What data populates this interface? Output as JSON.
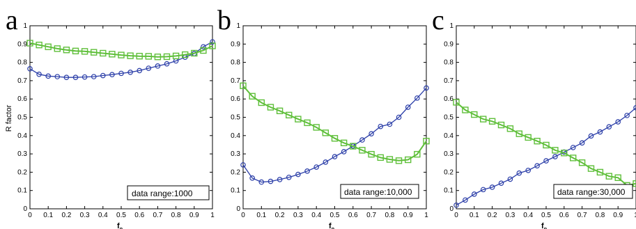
{
  "colors": {
    "blue_series": "#2b3ea8",
    "green_series": "#5fbf3a",
    "axis": "#000000",
    "legend_box_border": "#000000"
  },
  "chart_data": [
    {
      "type": "line",
      "panel_label": "a",
      "xlabel": "f_p",
      "ylabel": "R factor",
      "xlim": [
        0,
        1
      ],
      "ylim": [
        0,
        1
      ],
      "xticks": [
        "0",
        "0.1",
        "0.2",
        "0.3",
        "0.4",
        "0.5",
        "0.6",
        "0.7",
        "0.8",
        "0.9",
        "1"
      ],
      "yticks": [
        "0",
        "0.1",
        "0.2",
        "0.3",
        "0.4",
        "0.5",
        "0.6",
        "0.7",
        "0.8",
        "0.9",
        "1"
      ],
      "grid": false,
      "annotation": "data range:1000",
      "x": [
        0,
        0.05,
        0.1,
        0.15,
        0.2,
        0.25,
        0.3,
        0.35,
        0.4,
        0.45,
        0.5,
        0.55,
        0.6,
        0.65,
        0.7,
        0.75,
        0.8,
        0.85,
        0.9,
        0.95,
        1.0
      ],
      "series": [
        {
          "marker": "circle",
          "color_key": "blue_series",
          "values": [
            0.765,
            0.735,
            0.725,
            0.722,
            0.718,
            0.718,
            0.72,
            0.722,
            0.728,
            0.733,
            0.74,
            0.746,
            0.755,
            0.768,
            0.78,
            0.792,
            0.808,
            0.828,
            0.848,
            0.885,
            0.912
          ]
        },
        {
          "marker": "square",
          "color_key": "green_series",
          "values": [
            0.905,
            0.895,
            0.885,
            0.875,
            0.868,
            0.862,
            0.86,
            0.855,
            0.85,
            0.845,
            0.84,
            0.836,
            0.834,
            0.833,
            0.83,
            0.831,
            0.835,
            0.842,
            0.85,
            0.865,
            0.89
          ]
        }
      ]
    },
    {
      "type": "line",
      "panel_label": "b",
      "xlabel": "f_p",
      "ylabel": "",
      "xlim": [
        0,
        1
      ],
      "ylim": [
        0,
        1
      ],
      "xticks": [
        "0",
        "0.1",
        "0.2",
        "0.3",
        "0.4",
        "0.5",
        "0.6",
        "0.7",
        "0.8",
        "0.9",
        "1"
      ],
      "yticks": [
        "0",
        "0.1",
        "0.2",
        "0.3",
        "0.4",
        "0.5",
        "0.6",
        "0.7",
        "0.8",
        "0.9",
        "1"
      ],
      "grid": false,
      "annotation": "data range:10,000",
      "x": [
        0,
        0.05,
        0.1,
        0.15,
        0.2,
        0.25,
        0.3,
        0.35,
        0.4,
        0.45,
        0.5,
        0.55,
        0.6,
        0.65,
        0.7,
        0.75,
        0.8,
        0.85,
        0.9,
        0.95,
        1.0
      ],
      "series": [
        {
          "marker": "circle",
          "color_key": "blue_series",
          "values": [
            0.24,
            0.168,
            0.146,
            0.15,
            0.16,
            0.172,
            0.188,
            0.206,
            0.228,
            0.255,
            0.285,
            0.312,
            0.343,
            0.376,
            0.41,
            0.45,
            0.462,
            0.5,
            0.555,
            0.605,
            0.66
          ]
        },
        {
          "marker": "square",
          "color_key": "green_series",
          "values": [
            0.672,
            0.615,
            0.58,
            0.555,
            0.535,
            0.512,
            0.49,
            0.47,
            0.445,
            0.415,
            0.385,
            0.36,
            0.342,
            0.32,
            0.298,
            0.28,
            0.27,
            0.263,
            0.268,
            0.298,
            0.37
          ]
        }
      ]
    },
    {
      "type": "line",
      "panel_label": "c",
      "xlabel": "f_p",
      "ylabel": "",
      "xlim": [
        0,
        1
      ],
      "ylim": [
        0,
        1
      ],
      "xticks": [
        "0",
        "0.1",
        "0.2",
        "0.3",
        "0.4",
        "0.5",
        "0.6",
        "0.7",
        "0.8",
        "0.9",
        "1"
      ],
      "yticks": [
        "0",
        "0.1",
        "0.2",
        "0.3",
        "0.4",
        "0.5",
        "0.6",
        "0.7",
        "0.8",
        "0.9",
        "1"
      ],
      "grid": false,
      "annotation": "data range:30,000",
      "x": [
        0,
        0.05,
        0.1,
        0.15,
        0.2,
        0.25,
        0.3,
        0.35,
        0.4,
        0.45,
        0.5,
        0.55,
        0.6,
        0.65,
        0.7,
        0.75,
        0.8,
        0.85,
        0.9,
        0.95,
        1.0
      ],
      "series": [
        {
          "marker": "circle",
          "color_key": "blue_series",
          "values": [
            0.02,
            0.048,
            0.08,
            0.105,
            0.118,
            0.14,
            0.162,
            0.195,
            0.21,
            0.235,
            0.262,
            0.285,
            0.31,
            0.335,
            0.36,
            0.398,
            0.42,
            0.448,
            0.475,
            0.51,
            0.552
          ]
        },
        {
          "marker": "square",
          "color_key": "green_series",
          "values": [
            0.582,
            0.54,
            0.515,
            0.49,
            0.478,
            0.458,
            0.438,
            0.41,
            0.39,
            0.37,
            0.348,
            0.32,
            0.305,
            0.278,
            0.252,
            0.22,
            0.2,
            0.178,
            0.17,
            0.128,
            0.138
          ]
        }
      ]
    }
  ]
}
